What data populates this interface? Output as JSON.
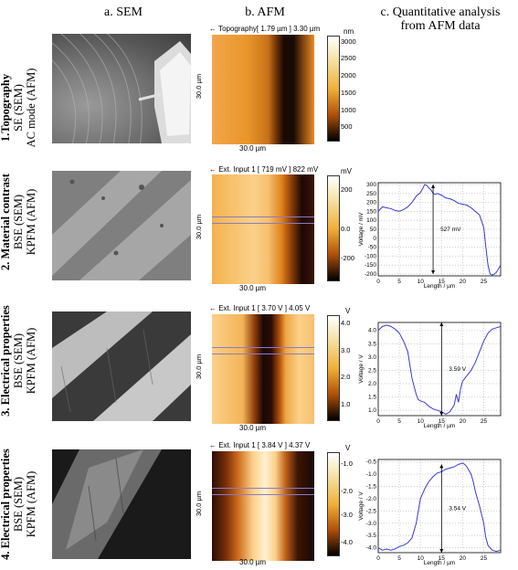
{
  "headers": {
    "col_a": "a. SEM",
    "col_b": "b. AFM",
    "col_c_line1": "c. Quantitative analysis",
    "col_c_line2": "from AFM data"
  },
  "rows": [
    {
      "title": "1.Topography",
      "line2": "SE (SEM)",
      "line3": "AC mode (AFM)",
      "afm_title": "← Topography[ 1.79 µm ] 3.30 µm",
      "scan_x": "30.0 µm",
      "scan_y": "30.0 µm",
      "cbar_unit": "nm",
      "cbar_ticks": [
        "3000",
        "2500",
        "2000",
        "1500",
        "1000",
        "500"
      ]
    },
    {
      "title": "2. Material contrast",
      "line2": "BSE (SEM)",
      "line3": "KPFM (AFM)",
      "afm_title": "← Ext. Input 1 [ 719 mV ] 822 mV",
      "scan_x": "30.0 µm",
      "scan_y": "30.0 µm",
      "cbar_unit": "mV",
      "cbar_ticks": [
        "200",
        "0.0",
        "-200"
      ]
    },
    {
      "title": "3. Electrical properties",
      "line2": "BSE (SEM)",
      "line3": "KPFM (AFM)",
      "afm_title": "← Ext. Input 1    [ 3.70 V ] 4.05 V",
      "scan_x": "30.0 µm",
      "scan_y": "30.0 µm",
      "cbar_unit": "V",
      "cbar_ticks": [
        "4.0",
        "3.0",
        "2.0",
        "1.0"
      ]
    },
    {
      "title": "4. Electrical properties",
      "line2": "BSE (SEM)",
      "line3": "KPFM (AFM)",
      "afm_title": "← Ext. Input 1    [ 3.84 V ] 4.37 V",
      "scan_x": "30.0 µm",
      "scan_y": "30.0 µm",
      "cbar_unit": "V",
      "cbar_ticks": [
        "-1.0",
        "-2.0",
        "-3.0",
        "-4.0"
      ]
    }
  ],
  "chart_data": [
    {
      "type": "line",
      "ylabel": "Voltage / mV",
      "xlabel": "Length / µm",
      "xlim": [
        0,
        29
      ],
      "ylim": [
        -210,
        310
      ],
      "xticks": [
        0,
        5,
        10,
        15,
        20,
        25
      ],
      "yticks": [
        300,
        250,
        200,
        150,
        100,
        50,
        0,
        -50,
        -100,
        -150,
        -200
      ],
      "annotation": "527 mV",
      "arrow_x": 13,
      "arrow_y": [
        300,
        -200
      ],
      "series": [
        {
          "x": [
            0,
            1,
            2,
            3,
            4,
            5,
            6,
            7,
            8,
            9,
            10,
            10.5,
            11,
            11.5,
            12,
            12.5,
            13,
            13.5,
            14,
            15,
            16,
            17,
            18,
            19,
            20,
            21,
            22,
            23,
            24,
            25,
            25.5,
            26,
            26.5,
            27,
            27.5,
            28,
            28.5,
            29
          ],
          "values": [
            150,
            175,
            170,
            165,
            155,
            150,
            160,
            175,
            200,
            235,
            255,
            275,
            300,
            295,
            280,
            270,
            250,
            245,
            250,
            240,
            225,
            220,
            210,
            195,
            190,
            185,
            170,
            150,
            130,
            60,
            -50,
            -150,
            -200,
            -205,
            -200,
            -190,
            -170,
            -150
          ]
        }
      ]
    },
    {
      "type": "line",
      "ylabel": "Voltage / V",
      "xlabel": "Length / µm",
      "xlim": [
        0,
        29
      ],
      "ylim": [
        0.8,
        4.3
      ],
      "xticks": [
        0,
        5,
        10,
        15,
        20,
        25
      ],
      "yticks": [
        4.0,
        3.5,
        3.0,
        2.5,
        2.0,
        1.5,
        1.0
      ],
      "annotation": "3.59 V",
      "arrow_x": 15,
      "arrow_y": [
        4.3,
        0.8
      ],
      "series": [
        {
          "x": [
            0,
            1,
            2,
            3,
            4,
            5,
            6,
            7,
            7.5,
            8,
            8.5,
            9,
            9.5,
            10,
            11,
            12,
            13,
            14,
            15,
            16,
            17,
            18,
            18.5,
            19,
            19.5,
            20,
            21,
            22,
            23,
            24,
            25,
            26,
            27,
            28,
            29
          ],
          "values": [
            4.0,
            4.15,
            4.2,
            4.15,
            4.05,
            3.9,
            3.6,
            3.2,
            2.7,
            2.2,
            1.9,
            1.6,
            1.4,
            1.35,
            1.3,
            1.15,
            1.05,
            1.0,
            0.95,
            0.85,
            0.95,
            1.2,
            1.6,
            1.3,
            1.8,
            2.1,
            2.3,
            2.5,
            2.8,
            3.2,
            3.6,
            3.9,
            4.05,
            4.1,
            4.15
          ]
        }
      ]
    },
    {
      "type": "line",
      "ylabel": "Voltage / V",
      "xlabel": "Length / µm",
      "xlim": [
        0,
        29
      ],
      "ylim": [
        -4.2,
        -0.4
      ],
      "xticks": [
        0,
        5,
        10,
        15,
        20,
        25
      ],
      "yticks": [
        -0.5,
        -1.0,
        -1.5,
        -2.0,
        -2.5,
        -3.0,
        -3.5,
        -4.0
      ],
      "annotation": "3.54 V",
      "arrow_x": 15,
      "arrow_y": [
        -0.6,
        -4.2
      ],
      "series": [
        {
          "x": [
            0,
            1,
            2,
            3,
            4,
            5,
            6,
            7,
            8,
            9,
            9.5,
            10,
            11,
            12,
            13,
            14,
            15,
            16,
            17,
            18,
            19,
            20,
            20.5,
            21,
            22,
            22.5,
            23,
            24,
            25,
            25.5,
            26,
            27,
            28,
            29
          ],
          "values": [
            -4.0,
            -4.1,
            -4.05,
            -4.1,
            -4.05,
            -3.95,
            -3.9,
            -3.8,
            -3.6,
            -3.0,
            -2.5,
            -2.0,
            -1.6,
            -1.3,
            -1.1,
            -0.95,
            -0.9,
            -0.8,
            -0.75,
            -0.7,
            -0.6,
            -0.55,
            -0.6,
            -0.7,
            -1.0,
            -1.3,
            -1.7,
            -2.3,
            -3.0,
            -3.6,
            -3.9,
            -4.1,
            -4.15,
            -4.1
          ]
        }
      ]
    }
  ]
}
